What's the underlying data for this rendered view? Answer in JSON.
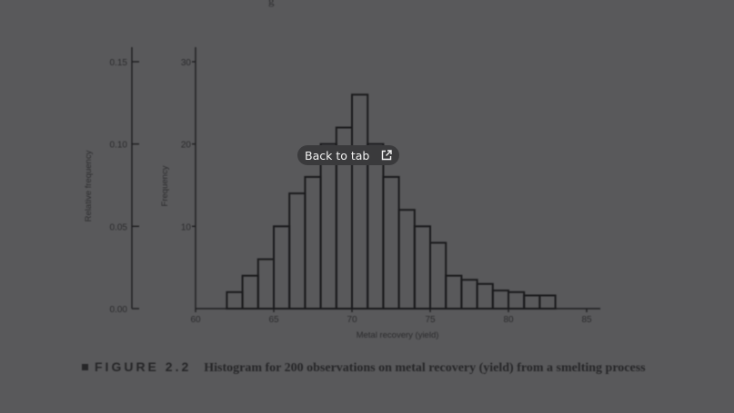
{
  "overlay": {
    "back_to_tab_label": "Back to tab",
    "icon": "open-external-icon"
  },
  "top_fragment": "g",
  "figure": {
    "label": "FIGURE 2.2",
    "caption": "Histogram for 200 observations on metal recovery (yield) from a smelting process"
  },
  "chart_data": {
    "type": "bar",
    "xlabel": "Metal recovery (yield)",
    "ylabel": "Frequency",
    "ylabel_secondary": "Relative frequency",
    "xlim": [
      60,
      85
    ],
    "xticks": [
      "60",
      "65",
      "70",
      "75",
      "80",
      "85"
    ],
    "ylim": [
      0,
      30
    ],
    "yticks": [
      "10",
      "20",
      "30"
    ],
    "ylim_secondary": [
      0,
      0.15
    ],
    "yticks_secondary": [
      "0.00",
      "0.05",
      "0.10",
      "0.15"
    ],
    "bin_width": 1,
    "bins": [
      {
        "x": 62,
        "value": 2
      },
      {
        "x": 63,
        "value": 4
      },
      {
        "x": 64,
        "value": 6
      },
      {
        "x": 65,
        "value": 10
      },
      {
        "x": 66,
        "value": 14
      },
      {
        "x": 67,
        "value": 16
      },
      {
        "x": 68,
        "value": 20
      },
      {
        "x": 69,
        "value": 22
      },
      {
        "x": 70,
        "value": 26
      },
      {
        "x": 71,
        "value": 20
      },
      {
        "x": 72,
        "value": 16
      },
      {
        "x": 73,
        "value": 12
      },
      {
        "x": 74,
        "value": 10
      },
      {
        "x": 75,
        "value": 8
      },
      {
        "x": 76,
        "value": 4
      },
      {
        "x": 77,
        "value": 3.5
      },
      {
        "x": 78,
        "value": 3
      },
      {
        "x": 79,
        "value": 2.2
      },
      {
        "x": 80,
        "value": 2
      },
      {
        "x": 81,
        "value": 1.6
      },
      {
        "x": 82,
        "value": 1.6
      }
    ]
  }
}
